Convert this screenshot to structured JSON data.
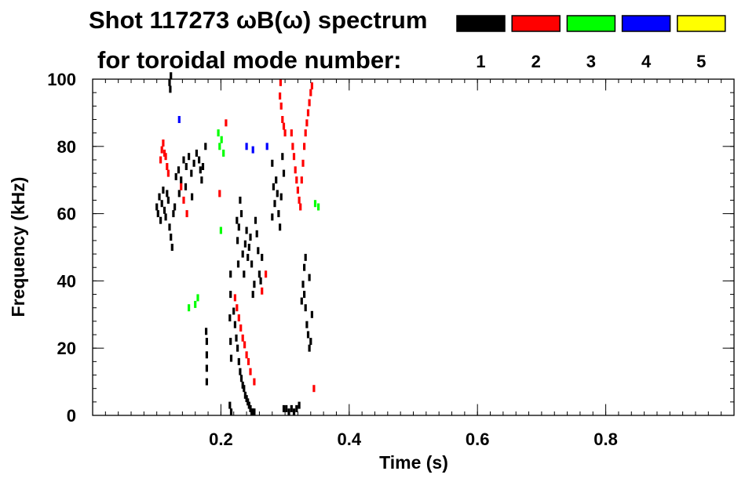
{
  "header": {
    "title": "Shot 117273 ωB(ω) spectrum",
    "legend_title": "for toroidal mode number:"
  },
  "legend": [
    {
      "label": "1",
      "color": "#000000"
    },
    {
      "label": "2",
      "color": "#ff0000"
    },
    {
      "label": "3",
      "color": "#00ff00"
    },
    {
      "label": "4",
      "color": "#0000ff"
    },
    {
      "label": "5",
      "color": "#ffff00"
    }
  ],
  "chart_data": {
    "type": "heatmap",
    "title": "Shot 117273 ωB(ω) spectrum",
    "xlabel": "Time (s)",
    "ylabel": "Frequency (kHz)",
    "xlim": [
      0.0,
      1.0
    ],
    "ylim": [
      0,
      100
    ],
    "xticks": [
      {
        "value": 0.2,
        "label": "0.2"
      },
      {
        "value": 0.4,
        "label": "0.4"
      },
      {
        "value": 0.6,
        "label": "0.6"
      },
      {
        "value": 0.8,
        "label": "0.8"
      }
    ],
    "yticks": [
      {
        "value": 0,
        "label": "0"
      },
      {
        "value": 20,
        "label": "20"
      },
      {
        "value": 40,
        "label": "40"
      },
      {
        "value": 60,
        "label": "60"
      },
      {
        "value": 80,
        "label": "80"
      },
      {
        "value": 100,
        "label": "100"
      }
    ],
    "x_minor_step": 0.02,
    "y_minor_step": 4,
    "grid": false,
    "series": [
      {
        "name": "1",
        "color": "#000000",
        "points": [
          [
            0.1,
            62
          ],
          [
            0.102,
            60
          ],
          [
            0.104,
            65
          ],
          [
            0.106,
            58
          ],
          [
            0.108,
            63
          ],
          [
            0.11,
            67
          ],
          [
            0.112,
            61
          ],
          [
            0.114,
            59
          ],
          [
            0.116,
            66
          ],
          [
            0.118,
            64
          ],
          [
            0.12,
            56
          ],
          [
            0.122,
            53
          ],
          [
            0.124,
            50
          ],
          [
            0.126,
            60
          ],
          [
            0.128,
            62
          ],
          [
            0.13,
            71
          ],
          [
            0.134,
            73
          ],
          [
            0.138,
            70
          ],
          [
            0.142,
            76
          ],
          [
            0.146,
            74
          ],
          [
            0.15,
            77
          ],
          [
            0.154,
            72
          ],
          [
            0.158,
            75
          ],
          [
            0.162,
            78
          ],
          [
            0.166,
            76
          ],
          [
            0.168,
            73
          ],
          [
            0.17,
            70
          ],
          [
            0.172,
            74
          ],
          [
            0.176,
            80
          ],
          [
            0.135,
            66
          ],
          [
            0.145,
            68
          ],
          [
            0.155,
            65
          ],
          [
            0.12,
            99
          ],
          [
            0.121,
            97
          ],
          [
            0.122,
            101
          ],
          [
            0.178,
            22
          ],
          [
            0.178,
            18
          ],
          [
            0.178,
            14
          ],
          [
            0.178,
            10
          ],
          [
            0.177,
            25
          ],
          [
            0.214,
            3
          ],
          [
            0.216,
            1
          ],
          [
            0.225,
            58
          ],
          [
            0.226,
            52
          ],
          [
            0.227,
            45
          ],
          [
            0.228,
            56
          ],
          [
            0.23,
            64
          ],
          [
            0.232,
            60
          ],
          [
            0.234,
            48
          ],
          [
            0.236,
            42
          ],
          [
            0.238,
            51
          ],
          [
            0.24,
            55
          ],
          [
            0.242,
            47
          ],
          [
            0.244,
            50
          ],
          [
            0.246,
            53
          ],
          [
            0.248,
            45
          ],
          [
            0.25,
            36
          ],
          [
            0.252,
            39
          ],
          [
            0.254,
            58
          ],
          [
            0.256,
            54
          ],
          [
            0.258,
            49
          ],
          [
            0.26,
            42
          ],
          [
            0.262,
            40
          ],
          [
            0.264,
            47
          ],
          [
            0.28,
            75
          ],
          [
            0.282,
            68
          ],
          [
            0.284,
            63
          ],
          [
            0.286,
            70
          ],
          [
            0.288,
            66
          ],
          [
            0.29,
            60
          ],
          [
            0.292,
            56
          ],
          [
            0.294,
            65
          ],
          [
            0.296,
            77
          ],
          [
            0.298,
            72
          ],
          [
            0.28,
            59
          ],
          [
            0.22,
            31
          ],
          [
            0.222,
            27
          ],
          [
            0.224,
            23
          ],
          [
            0.226,
            20
          ],
          [
            0.228,
            16
          ],
          [
            0.23,
            13
          ],
          [
            0.232,
            11
          ],
          [
            0.234,
            9
          ],
          [
            0.236,
            8
          ],
          [
            0.238,
            6
          ],
          [
            0.24,
            5
          ],
          [
            0.242,
            4
          ],
          [
            0.244,
            3
          ],
          [
            0.246,
            2
          ],
          [
            0.248,
            1
          ],
          [
            0.25,
            1
          ],
          [
            0.252,
            1
          ],
          [
            0.215,
            42
          ],
          [
            0.215,
            36
          ],
          [
            0.214,
            29
          ],
          [
            0.215,
            22
          ],
          [
            0.216,
            17
          ],
          [
            0.298,
            2
          ],
          [
            0.302,
            2
          ],
          [
            0.306,
            1
          ],
          [
            0.31,
            2
          ],
          [
            0.314,
            1
          ],
          [
            0.318,
            2
          ],
          [
            0.322,
            3
          ],
          [
            0.326,
            34
          ],
          [
            0.328,
            39
          ],
          [
            0.33,
            36
          ],
          [
            0.332,
            32
          ],
          [
            0.334,
            27
          ],
          [
            0.336,
            24
          ],
          [
            0.338,
            20
          ],
          [
            0.34,
            22
          ],
          [
            0.342,
            30
          ],
          [
            0.33,
            44
          ],
          [
            0.332,
            47
          ],
          [
            0.338,
            41
          ]
        ]
      },
      {
        "name": "2",
        "color": "#ff0000",
        "points": [
          [
            0.106,
            76
          ],
          [
            0.108,
            79
          ],
          [
            0.11,
            81
          ],
          [
            0.112,
            78
          ],
          [
            0.114,
            77
          ],
          [
            0.116,
            74
          ],
          [
            0.118,
            72
          ],
          [
            0.138,
            68
          ],
          [
            0.142,
            64
          ],
          [
            0.147,
            60
          ],
          [
            0.222,
            35
          ],
          [
            0.225,
            32
          ],
          [
            0.228,
            29
          ],
          [
            0.231,
            26
          ],
          [
            0.234,
            23
          ],
          [
            0.237,
            21
          ],
          [
            0.24,
            18
          ],
          [
            0.243,
            16
          ],
          [
            0.246,
            13
          ],
          [
            0.252,
            10
          ],
          [
            0.292,
            95
          ],
          [
            0.294,
            92
          ],
          [
            0.296,
            88
          ],
          [
            0.298,
            86
          ],
          [
            0.3,
            84
          ],
          [
            0.293,
            99
          ],
          [
            0.31,
            84
          ],
          [
            0.312,
            80
          ],
          [
            0.314,
            77
          ],
          [
            0.316,
            73
          ],
          [
            0.318,
            70
          ],
          [
            0.32,
            67
          ],
          [
            0.322,
            64
          ],
          [
            0.324,
            62
          ],
          [
            0.326,
            70
          ],
          [
            0.328,
            75
          ],
          [
            0.33,
            80
          ],
          [
            0.332,
            84
          ],
          [
            0.334,
            87
          ],
          [
            0.336,
            90
          ],
          [
            0.338,
            93
          ],
          [
            0.34,
            96
          ],
          [
            0.342,
            98
          ],
          [
            0.27,
            42
          ],
          [
            0.264,
            37
          ],
          [
            0.208,
            87
          ],
          [
            0.345,
            8
          ],
          [
            0.198,
            66
          ]
        ]
      },
      {
        "name": "3",
        "color": "#00ff00",
        "points": [
          [
            0.196,
            84
          ],
          [
            0.198,
            80
          ],
          [
            0.201,
            82
          ],
          [
            0.204,
            78
          ],
          [
            0.16,
            33
          ],
          [
            0.164,
            35
          ],
          [
            0.15,
            32
          ],
          [
            0.2,
            55
          ],
          [
            0.347,
            63
          ],
          [
            0.352,
            62
          ]
        ]
      },
      {
        "name": "4",
        "color": "#0000ff",
        "points": [
          [
            0.135,
            88
          ],
          [
            0.24,
            80
          ],
          [
            0.25,
            79
          ],
          [
            0.272,
            80
          ]
        ]
      },
      {
        "name": "5",
        "color": "#ffff00",
        "points": []
      }
    ]
  }
}
